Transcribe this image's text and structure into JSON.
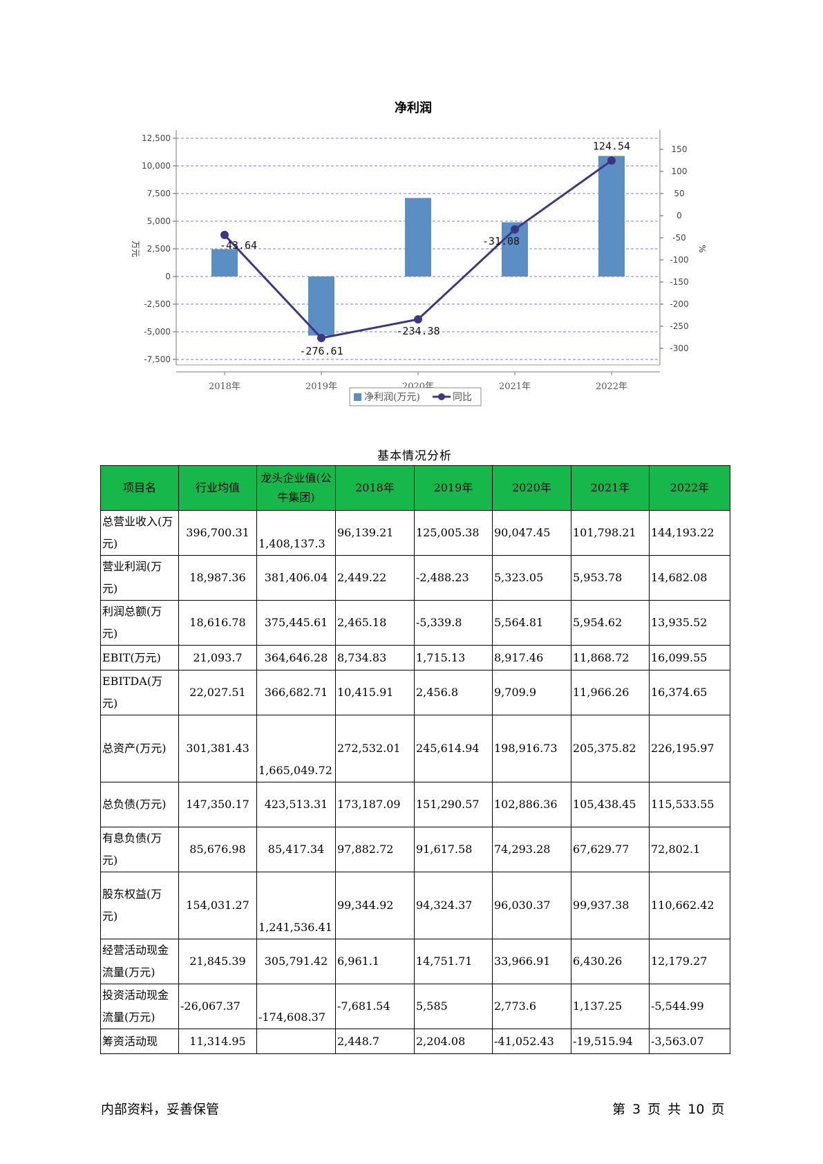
{
  "chart_data": {
    "type": "bar",
    "title": "净利润",
    "categories": [
      "2018年",
      "2019年",
      "2020年",
      "2021年",
      "2022年"
    ],
    "series": [
      {
        "name": "净利润(万元)",
        "type": "bar",
        "axis": "left",
        "values": [
          2465.18,
          -5339.8,
          7100,
          4900,
          10900
        ]
      },
      {
        "name": "同比",
        "type": "line",
        "axis": "right",
        "values": [
          -43.64,
          -276.61,
          -234.38,
          -31.08,
          124.54
        ]
      }
    ],
    "line_labels": [
      "-43.64",
      "-276.61",
      "-234.38",
      "-31.08",
      "124.54"
    ],
    "ylabel": "万元",
    "y2label": "%",
    "ylim": [
      -7500,
      12500
    ],
    "y2lim": [
      -300,
      150
    ],
    "yticks": [
      12500,
      10000,
      7500,
      5000,
      2500,
      0,
      -2500,
      -5000,
      -7500
    ],
    "ytick_labels": [
      "12,500",
      "10,000",
      "7,500",
      "5,000",
      "2,500",
      "0",
      "-2,500",
      "-5,000",
      "-7,500"
    ],
    "y2ticks": [
      150,
      100,
      50,
      0,
      -50,
      -100,
      -150,
      -200,
      -250,
      -300
    ],
    "grid": true,
    "legend_position": "bottom",
    "colors": {
      "bar": "#5b8fc4",
      "line": "#3d3585"
    }
  },
  "table": {
    "caption": "基本情况分析",
    "headers": [
      "项目名",
      "行业均值",
      "龙头企业值(公牛集团)",
      "2018年",
      "2019年",
      "2020年",
      "2021年",
      "2022年"
    ],
    "rows": [
      {
        "name": "总营业收入(万元)",
        "cells": [
          "396,700.31",
          "1,408,137.3",
          "96,139.21",
          "125,005.38",
          "90,047.45",
          "101,798.21",
          "144,193.22"
        ]
      },
      {
        "name": "营业利润(万元)",
        "cells": [
          "18,987.36",
          "381,406.04",
          "2,449.22",
          "-2,488.23",
          "5,323.05",
          "5,953.78",
          "14,682.08"
        ]
      },
      {
        "name": "利润总额(万元)",
        "cells": [
          "18,616.78",
          "375,445.61",
          "2,465.18",
          "-5,339.8",
          "5,564.81",
          "5,954.62",
          "13,935.52"
        ]
      },
      {
        "name": "EBIT(万元)",
        "cells": [
          "21,093.7",
          "364,646.28",
          "8,734.83",
          "1,715.13",
          "8,917.46",
          "11,868.72",
          "16,099.55"
        ]
      },
      {
        "name": "EBITDA(万元)",
        "cells": [
          "22,027.51",
          "366,682.71",
          "10,415.91",
          "2,456.8",
          "9,709.9",
          "11,966.26",
          "16,374.65"
        ]
      },
      {
        "name": "总资产(万元)",
        "cells": [
          "301,381.43",
          "1,665,049.72",
          "272,532.01",
          "245,614.94",
          "198,916.73",
          "205,375.82",
          "226,195.97"
        ]
      },
      {
        "name": "总负债(万元)",
        "cells": [
          "147,350.17",
          "423,513.31",
          "173,187.09",
          "151,290.57",
          "102,886.36",
          "105,438.45",
          "115,533.55"
        ]
      },
      {
        "name": "有息负债(万元)",
        "cells": [
          "85,676.98",
          "85,417.34",
          "97,882.72",
          "91,617.58",
          "74,293.28",
          "67,629.77",
          "72,802.1"
        ]
      },
      {
        "name": "股东权益(万元)",
        "cells": [
          "154,031.27",
          "1,241,536.41",
          "99,344.92",
          "94,324.37",
          "96,030.37",
          "99,937.38",
          "110,662.42"
        ]
      },
      {
        "name": "经营活动现金流量(万元)",
        "cells": [
          "21,845.39",
          "305,791.42",
          "6,961.1",
          "14,751.71",
          "33,966.91",
          "6,430.26",
          "12,179.27"
        ]
      },
      {
        "name": "投资活动现金流量(万元)",
        "cells": [
          "-26,067.37",
          "-174,608.37",
          "-7,681.54",
          "5,585",
          "2,773.6",
          "1,137.25",
          "-5,544.99"
        ]
      },
      {
        "name": "筹资活动现",
        "cells": [
          "11,314.95",
          "",
          "2,448.7",
          "2,204.08",
          "-41,052.43",
          "-19,515.94",
          "-3,563.07"
        ]
      }
    ]
  },
  "footer": {
    "left": "内部资料，妥善保管",
    "right": "第 3 页   共 10 页"
  }
}
